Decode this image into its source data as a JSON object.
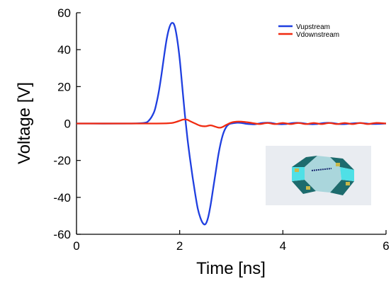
{
  "chart_data": {
    "type": "line",
    "xlabel": "Time [ns]",
    "ylabel": "Voltage [V]",
    "xlim": [
      0,
      6
    ],
    "ylim": [
      -60,
      60
    ],
    "xticks": [
      0,
      2,
      4,
      6
    ],
    "yticks": [
      60,
      40,
      20,
      0,
      -20,
      -40,
      -60
    ],
    "grid": false,
    "legend_position": "top-right",
    "series": [
      {
        "name": "Vupstream",
        "color": "#1f3fe0",
        "x": [
          0.0,
          1.0,
          1.3,
          1.4,
          1.5,
          1.55,
          1.6,
          1.65,
          1.7,
          1.75,
          1.8,
          1.85,
          1.9,
          1.95,
          2.0,
          2.05,
          2.1,
          2.15,
          2.2,
          2.25,
          2.3,
          2.35,
          2.4,
          2.45,
          2.5,
          2.55,
          2.6,
          2.65,
          2.7,
          2.75,
          2.8,
          2.85,
          2.9,
          2.95,
          3.0,
          3.1,
          3.2,
          3.3,
          3.45,
          3.6,
          3.75,
          3.9,
          4.05,
          4.2,
          4.35,
          4.5,
          4.65,
          4.8,
          4.95,
          5.1,
          5.25,
          5.4,
          5.55,
          5.7,
          5.85,
          6.0
        ],
        "y": [
          0,
          0,
          0.3,
          1.5,
          6,
          11,
          18,
          27,
          37,
          46,
          52,
          54.5,
          53,
          46,
          35,
          20,
          5,
          -8,
          -19,
          -29,
          -38,
          -46,
          -51,
          -54,
          -54.5,
          -51,
          -44,
          -35,
          -26,
          -17,
          -10,
          -5,
          -2,
          -0.5,
          0,
          0.4,
          0.3,
          -0.2,
          -0.4,
          0.3,
          0.4,
          -0.3,
          -0.3,
          0.3,
          0.3,
          -0.3,
          -0.3,
          0.3,
          0.3,
          -0.3,
          -0.2,
          0.2,
          0.2,
          -0.2,
          -0.2,
          0
        ]
      },
      {
        "name": "Vdownstream",
        "color": "#f02a10",
        "x": [
          0.0,
          1.5,
          1.8,
          1.9,
          2.0,
          2.05,
          2.1,
          2.15,
          2.2,
          2.3,
          2.4,
          2.5,
          2.6,
          2.7,
          2.75,
          2.8,
          2.85,
          2.9,
          3.0,
          3.1,
          3.2,
          3.3,
          3.4,
          3.55,
          3.7,
          3.85,
          4.0,
          4.15,
          4.3,
          4.45,
          4.6,
          4.75,
          4.9,
          5.05,
          5.2,
          5.35,
          5.5,
          5.65,
          5.8,
          6.0
        ],
        "y": [
          0,
          0,
          0.2,
          0.6,
          1.5,
          2.0,
          2.2,
          2.0,
          1.3,
          0,
          -1.2,
          -1.5,
          -1.0,
          -1.8,
          -2.2,
          -2.2,
          -1.6,
          -0.8,
          0.5,
          1.0,
          1.0,
          0.7,
          0.3,
          -0.3,
          0.3,
          -0.3,
          0.3,
          -0.3,
          0.3,
          -0.3,
          0.3,
          -0.3,
          0.3,
          -0.3,
          0.3,
          -0.3,
          0.3,
          -0.3,
          0.3,
          0
        ]
      }
    ]
  },
  "inset": {
    "background": "#e9ecf1",
    "device_colors": [
      "#1d6b6d",
      "#4fe0e6",
      "#9fd2d8"
    ]
  }
}
